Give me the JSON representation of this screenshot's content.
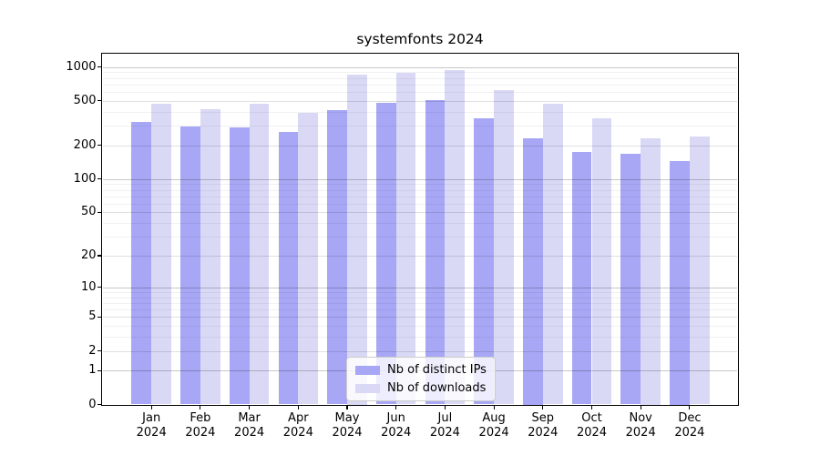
{
  "title": "systemfonts 2024",
  "legend": {
    "items": [
      {
        "label": "Nb of distinct IPs",
        "color": "#a7a7f5"
      },
      {
        "label": "Nb of downloads",
        "color": "#d9d9f6"
      }
    ]
  },
  "chart_data": {
    "type": "bar",
    "title": "systemfonts 2024",
    "y_scale": "log(value+1)",
    "grid": "both",
    "legend_position": "lower center",
    "categories": [
      "Jan 2024",
      "Feb 2024",
      "Mar 2024",
      "Apr 2024",
      "May 2024",
      "Jun 2024",
      "Jul 2024",
      "Aug 2024",
      "Sep 2024",
      "Oct 2024",
      "Nov 2024",
      "Dec 2024"
    ],
    "series": [
      {
        "name": "Nb of distinct IPs",
        "color": "#a7a7f5",
        "values": [
          325,
          296,
          287,
          265,
          410,
          478,
          510,
          350,
          233,
          175,
          167,
          146
        ]
      },
      {
        "name": "Nb of downloads",
        "color": "#d9d9f6",
        "values": [
          473,
          417,
          473,
          387,
          854,
          893,
          938,
          618,
          467,
          350,
          233,
          238
        ]
      }
    ],
    "y_ticks": [
      0,
      1,
      2,
      5,
      10,
      20,
      50,
      100,
      200,
      500,
      1000
    ],
    "y_minor_ticks": [
      3,
      4,
      6,
      7,
      8,
      9,
      30,
      40,
      60,
      70,
      80,
      90,
      300,
      400,
      600,
      700,
      800,
      900
    ],
    "y_decade_ticks": [
      1,
      10,
      100,
      1000
    ],
    "ylim": [
      0,
      1320
    ]
  }
}
